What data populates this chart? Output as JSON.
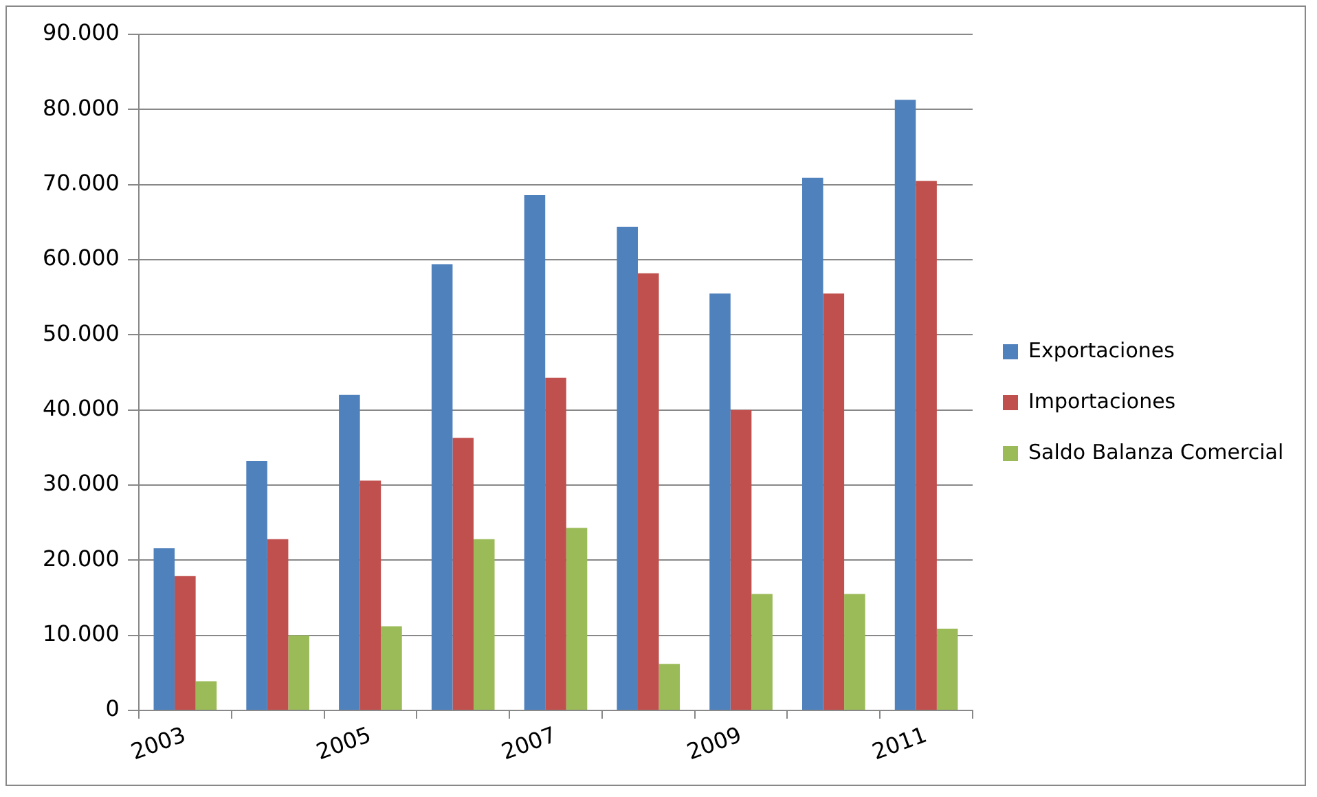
{
  "chart_data": {
    "type": "bar",
    "categories": [
      "2003",
      null,
      "2005",
      null,
      "2007",
      null,
      "2009",
      null,
      "2011"
    ],
    "series": [
      {
        "name": "Exportaciones",
        "color": "#4f81bd",
        "values": [
          21600,
          33200,
          42000,
          59400,
          68600,
          64400,
          55500,
          70900,
          81300
        ]
      },
      {
        "name": "Importaciones",
        "color": "#c0504d",
        "values": [
          17900,
          22800,
          30600,
          36300,
          44300,
          58200,
          40000,
          55500,
          70500
        ]
      },
      {
        "name": "Saldo Balanza Comercial",
        "color": "#9bbb59",
        "values": [
          3900,
          10000,
          11200,
          22800,
          24300,
          6200,
          15500,
          15500,
          10900
        ]
      }
    ],
    "ylim": [
      0,
      90000
    ],
    "yticks": [
      {
        "value": 0,
        "label": "0"
      },
      {
        "value": 10000,
        "label": "10.000"
      },
      {
        "value": 20000,
        "label": "20.000"
      },
      {
        "value": 30000,
        "label": "30.000"
      },
      {
        "value": 40000,
        "label": "40.000"
      },
      {
        "value": 50000,
        "label": "50.000"
      },
      {
        "value": 60000,
        "label": "60.000"
      },
      {
        "value": 70000,
        "label": "70.000"
      },
      {
        "value": 80000,
        "label": "80.000"
      },
      {
        "value": 90000,
        "label": "90.000"
      }
    ],
    "grid": "y",
    "legend": "right"
  }
}
